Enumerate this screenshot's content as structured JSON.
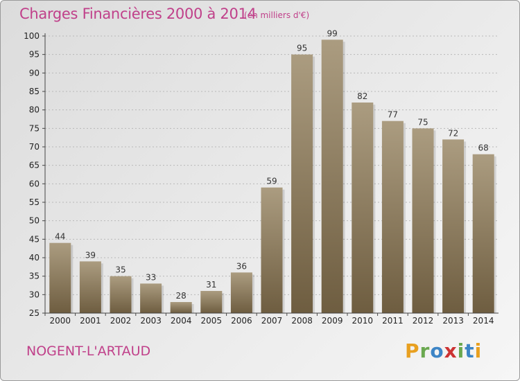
{
  "chart_data": {
    "type": "bar",
    "title": "Charges Financières 2000 à 2014",
    "subtitle": "(en milliers d'€)",
    "categories": [
      "2000",
      "2001",
      "2002",
      "2003",
      "2004",
      "2005",
      "2006",
      "2007",
      "2008",
      "2009",
      "2010",
      "2011",
      "2012",
      "2013",
      "2014"
    ],
    "values": [
      44,
      39,
      35,
      33,
      28,
      31,
      36,
      59,
      95,
      99,
      82,
      77,
      75,
      72,
      68
    ],
    "ylim": [
      25,
      100
    ],
    "yticks": [
      25,
      30,
      35,
      40,
      45,
      50,
      55,
      60,
      65,
      70,
      75,
      80,
      85,
      90,
      95,
      100
    ],
    "grid": true,
    "data_labels": true
  },
  "commune": "NOGENT-L'ARTAUD",
  "brand": {
    "letters": [
      "P",
      "r",
      "o",
      "x",
      "i",
      "t",
      "i"
    ],
    "colors": [
      "#e8a020",
      "#6aa84f",
      "#3d85c6",
      "#cc3333",
      "#6aa84f",
      "#3d85c6",
      "#e8a020"
    ]
  },
  "colors": {
    "bar_top": "#ab9c80",
    "bar_bottom": "#6e5d40",
    "text_accent": "#c0408a"
  }
}
